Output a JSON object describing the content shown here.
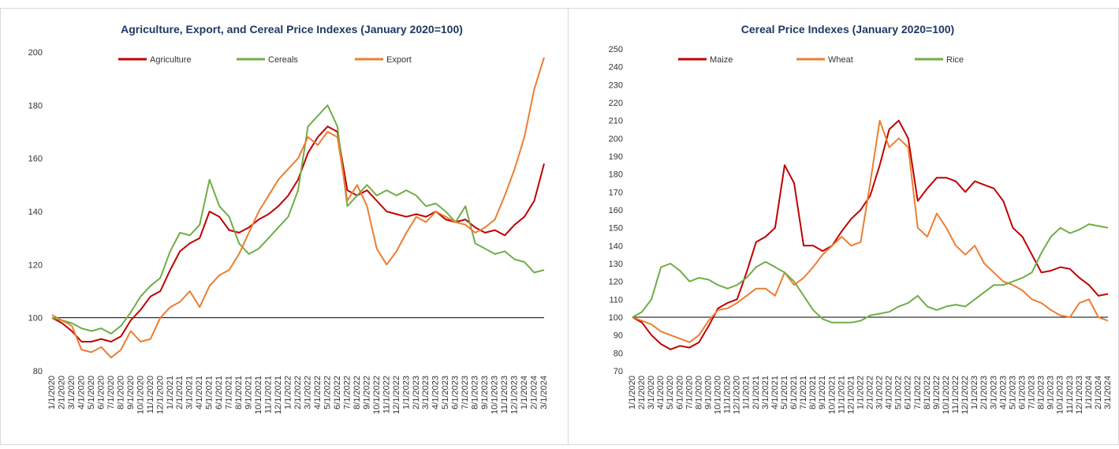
{
  "chart_data": [
    {
      "type": "line",
      "title": "Agriculture, Export, and Cereal Price Indexes (January 2020=100)",
      "categories": [
        "1/1/2020",
        "2/1/2020",
        "3/1/2020",
        "4/1/2020",
        "5/1/2020",
        "6/1/2020",
        "7/1/2020",
        "8/1/2020",
        "9/1/2020",
        "10/1/2020",
        "11/1/2020",
        "12/1/2020",
        "1/1/2021",
        "2/1/2021",
        "3/1/2021",
        "4/1/2021",
        "5/1/2021",
        "6/1/2021",
        "7/1/2021",
        "8/1/2021",
        "9/1/2021",
        "10/1/2021",
        "11/1/2021",
        "12/1/2021",
        "1/1/2022",
        "2/1/2022",
        "3/1/2022",
        "4/1/2022",
        "5/1/2022",
        "6/1/2022",
        "7/1/2022",
        "8/1/2022",
        "9/1/2022",
        "10/1/2022",
        "11/1/2022",
        "12/1/2022",
        "1/1/2023",
        "2/1/2023",
        "3/1/2023",
        "4/1/2023",
        "5/1/2023",
        "6/1/2023",
        "7/1/2023",
        "8/1/2023",
        "9/1/2023",
        "10/1/2023",
        "11/1/2023",
        "12/1/2023",
        "1/1/2024",
        "2/1/2024",
        "3/1/2024"
      ],
      "series": [
        {
          "name": "Agriculture",
          "color": "#c00000",
          "values": [
            100,
            98,
            95,
            91,
            91,
            92,
            91,
            93,
            99,
            103,
            108,
            110,
            118,
            125,
            128,
            130,
            140,
            138,
            133,
            132,
            134,
            137,
            139,
            142,
            146,
            152,
            162,
            168,
            172,
            170,
            148,
            146,
            148,
            144,
            140,
            139,
            138,
            139,
            138,
            140,
            137,
            136,
            137,
            134,
            132,
            133,
            131,
            135,
            138,
            144,
            158
          ]
        },
        {
          "name": "Cereals",
          "color": "#70ad47",
          "values": [
            100,
            99,
            98,
            96,
            95,
            96,
            94,
            97,
            102,
            108,
            112,
            115,
            125,
            132,
            131,
            135,
            152,
            142,
            138,
            128,
            124,
            126,
            130,
            134,
            138,
            148,
            172,
            176,
            180,
            172,
            142,
            146,
            150,
            146,
            148,
            146,
            148,
            146,
            142,
            143,
            140,
            136,
            142,
            128,
            126,
            124,
            125,
            122,
            121,
            117,
            118
          ]
        },
        {
          "name": "Export",
          "color": "#ed7d31",
          "values": [
            101,
            99,
            97,
            88,
            87,
            89,
            85,
            88,
            95,
            91,
            92,
            100,
            104,
            106,
            110,
            104,
            112,
            116,
            118,
            124,
            132,
            140,
            146,
            152,
            156,
            160,
            168,
            165,
            170,
            168,
            144,
            150,
            142,
            126,
            120,
            125,
            132,
            138,
            136,
            140,
            138,
            136,
            135,
            132,
            134,
            137,
            146,
            156,
            168,
            186,
            198
          ]
        }
      ],
      "ylim": [
        80,
        200
      ],
      "yticks": [
        80,
        100,
        120,
        140,
        160,
        180,
        200
      ],
      "hline": 100,
      "legend": "top"
    },
    {
      "type": "line",
      "title": "Cereal Price Indexes (January 2020=100)",
      "categories": [
        "1/1/2020",
        "2/1/2020",
        "3/1/2020",
        "4/1/2020",
        "5/1/2020",
        "6/1/2020",
        "7/1/2020",
        "8/1/2020",
        "9/1/2020",
        "10/1/2020",
        "11/1/2020",
        "12/1/2020",
        "1/1/2021",
        "2/1/2021",
        "3/1/2021",
        "4/1/2021",
        "5/1/2021",
        "6/1/2021",
        "7/1/2021",
        "8/1/2021",
        "9/1/2021",
        "10/1/2021",
        "11/1/2021",
        "12/1/2021",
        "1/1/2022",
        "2/1/2022",
        "3/1/2022",
        "4/1/2022",
        "5/1/2022",
        "6/1/2022",
        "7/1/2022",
        "8/1/2022",
        "9/1/2022",
        "10/1/2022",
        "11/1/2022",
        "12/1/2022",
        "1/1/2023",
        "2/1/2023",
        "3/1/2023",
        "4/1/2023",
        "5/1/2023",
        "6/1/2023",
        "7/1/2023",
        "8/1/2023",
        "9/1/2023",
        "10/1/2023",
        "11/1/2023",
        "12/1/2023",
        "1/1/2024",
        "2/1/2024",
        "3/1/2024"
      ],
      "series": [
        {
          "name": "Maize",
          "color": "#c00000",
          "values": [
            100,
            97,
            90,
            85,
            82,
            84,
            83,
            86,
            95,
            105,
            108,
            110,
            125,
            142,
            145,
            150,
            185,
            175,
            140,
            140,
            137,
            140,
            148,
            155,
            160,
            168,
            185,
            205,
            210,
            200,
            165,
            172,
            178,
            178,
            176,
            170,
            176,
            174,
            172,
            165,
            150,
            145,
            135,
            125,
            126,
            128,
            127,
            122,
            118,
            112,
            113
          ]
        },
        {
          "name": "Wheat",
          "color": "#ed7d31",
          "values": [
            100,
            98,
            96,
            92,
            90,
            88,
            86,
            90,
            98,
            104,
            105,
            108,
            112,
            116,
            116,
            112,
            125,
            118,
            122,
            128,
            135,
            140,
            145,
            140,
            142,
            175,
            210,
            195,
            200,
            195,
            150,
            145,
            158,
            150,
            140,
            135,
            140,
            130,
            125,
            120,
            118,
            115,
            110,
            108,
            104,
            101,
            100,
            108,
            110,
            100,
            98
          ]
        },
        {
          "name": "Rice",
          "color": "#70ad47",
          "values": [
            100,
            103,
            110,
            128,
            130,
            126,
            120,
            122,
            121,
            118,
            116,
            118,
            122,
            128,
            131,
            128,
            125,
            120,
            112,
            104,
            99,
            97,
            97,
            97,
            98,
            101,
            102,
            103,
            106,
            108,
            112,
            106,
            104,
            106,
            107,
            106,
            110,
            114,
            118,
            118,
            120,
            122,
            125,
            136,
            145,
            150,
            147,
            149,
            152,
            151,
            150
          ]
        }
      ],
      "ylim": [
        70,
        250
      ],
      "yticks": [
        70,
        80,
        90,
        100,
        110,
        120,
        130,
        140,
        150,
        160,
        170,
        180,
        190,
        200,
        210,
        220,
        230,
        240,
        250
      ],
      "hline": 100,
      "legend": "top"
    }
  ]
}
